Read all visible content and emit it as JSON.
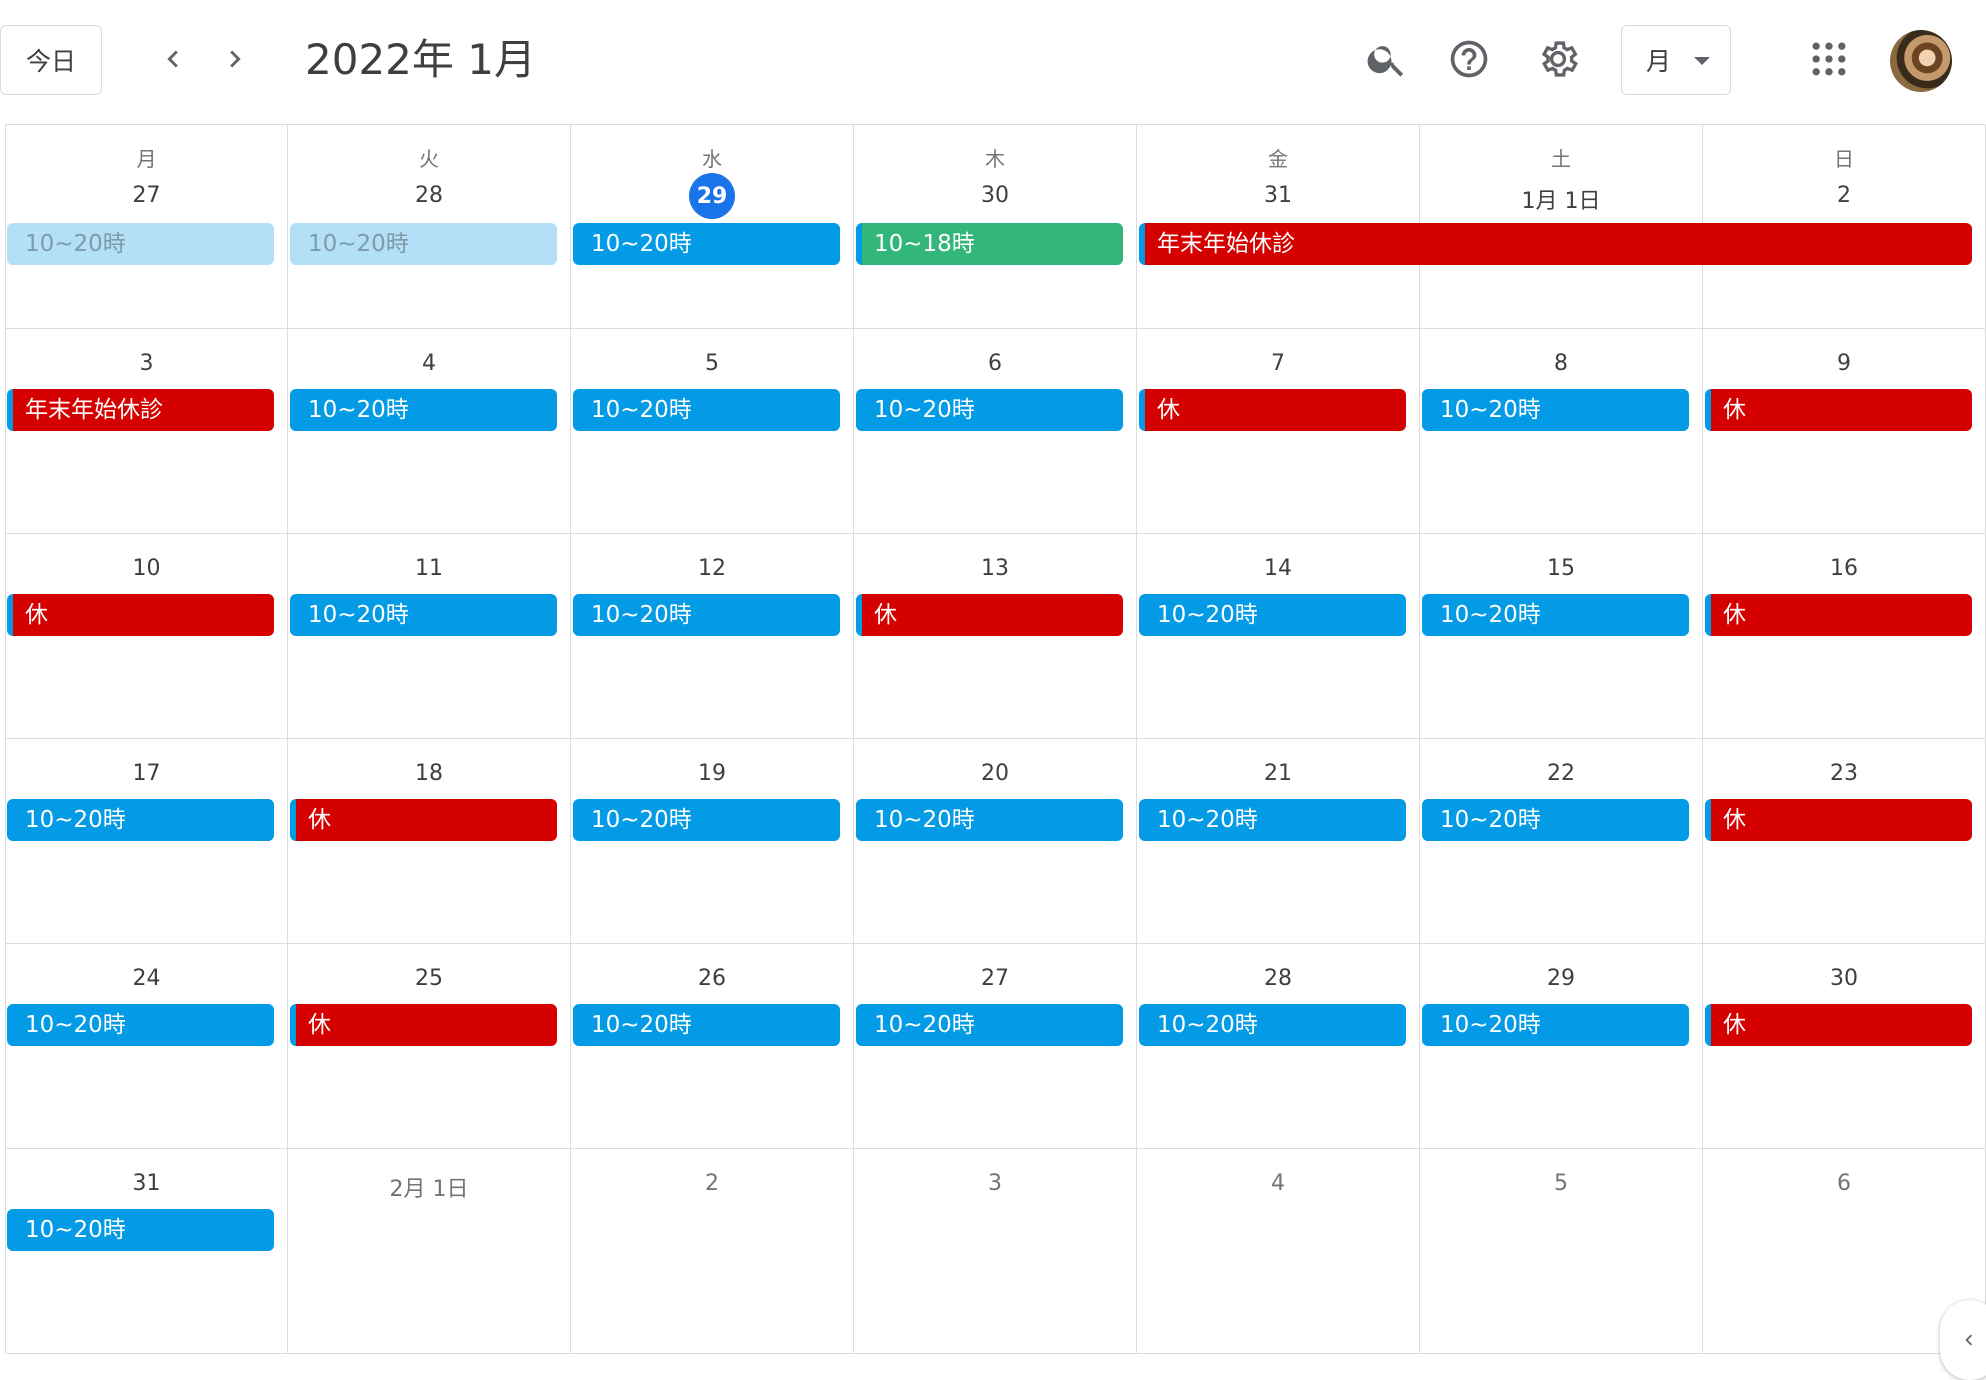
{
  "header": {
    "today_label": "今日",
    "title": "2022年 1月",
    "view_label": "月"
  },
  "weekdays": [
    "月",
    "火",
    "水",
    "木",
    "金",
    "土",
    "日"
  ],
  "weeks": [
    [
      {
        "label": "27",
        "muted": false,
        "today": false
      },
      {
        "label": "28",
        "muted": false,
        "today": false
      },
      {
        "label": "29",
        "muted": false,
        "today": true
      },
      {
        "label": "30",
        "muted": false,
        "today": false
      },
      {
        "label": "31",
        "muted": false,
        "today": false
      },
      {
        "label": "1月 1日",
        "muted": false,
        "today": false
      },
      {
        "label": "2",
        "muted": false,
        "today": false
      }
    ],
    [
      {
        "label": "3"
      },
      {
        "label": "4"
      },
      {
        "label": "5"
      },
      {
        "label": "6"
      },
      {
        "label": "7"
      },
      {
        "label": "8"
      },
      {
        "label": "9"
      }
    ],
    [
      {
        "label": "10"
      },
      {
        "label": "11"
      },
      {
        "label": "12"
      },
      {
        "label": "13"
      },
      {
        "label": "14"
      },
      {
        "label": "15"
      },
      {
        "label": "16"
      }
    ],
    [
      {
        "label": "17"
      },
      {
        "label": "18"
      },
      {
        "label": "19"
      },
      {
        "label": "20"
      },
      {
        "label": "21"
      },
      {
        "label": "22"
      },
      {
        "label": "23"
      }
    ],
    [
      {
        "label": "24"
      },
      {
        "label": "25"
      },
      {
        "label": "26"
      },
      {
        "label": "27"
      },
      {
        "label": "28"
      },
      {
        "label": "29"
      },
      {
        "label": "30"
      }
    ],
    [
      {
        "label": "31"
      },
      {
        "label": "2月 1日",
        "muted": true
      },
      {
        "label": "2",
        "muted": true
      },
      {
        "label": "3",
        "muted": true
      },
      {
        "label": "4",
        "muted": true
      },
      {
        "label": "5",
        "muted": true
      },
      {
        "label": "6",
        "muted": true
      }
    ]
  ],
  "events": [
    {
      "week": 0,
      "col": 0,
      "span": 1,
      "text": "10~20時",
      "style": "past"
    },
    {
      "week": 0,
      "col": 1,
      "span": 1,
      "text": "10~20時",
      "style": "past"
    },
    {
      "week": 0,
      "col": 2,
      "span": 1,
      "text": "10~20時",
      "style": "blue"
    },
    {
      "week": 0,
      "col": 3,
      "span": 1,
      "text": "10~18時",
      "style": "green"
    },
    {
      "week": 0,
      "col": 4,
      "span": 3,
      "text": "年末年始休診",
      "style": "red"
    },
    {
      "week": 1,
      "col": 0,
      "span": 1,
      "text": "年末年始休診",
      "style": "red"
    },
    {
      "week": 1,
      "col": 1,
      "span": 1,
      "text": "10~20時",
      "style": "blue"
    },
    {
      "week": 1,
      "col": 2,
      "span": 1,
      "text": "10~20時",
      "style": "blue"
    },
    {
      "week": 1,
      "col": 3,
      "span": 1,
      "text": "10~20時",
      "style": "blue"
    },
    {
      "week": 1,
      "col": 4,
      "span": 1,
      "text": "休",
      "style": "red"
    },
    {
      "week": 1,
      "col": 5,
      "span": 1,
      "text": "10~20時",
      "style": "blue"
    },
    {
      "week": 1,
      "col": 6,
      "span": 1,
      "text": "休",
      "style": "red"
    },
    {
      "week": 2,
      "col": 0,
      "span": 1,
      "text": "休",
      "style": "red"
    },
    {
      "week": 2,
      "col": 1,
      "span": 1,
      "text": "10~20時",
      "style": "blue"
    },
    {
      "week": 2,
      "col": 2,
      "span": 1,
      "text": "10~20時",
      "style": "blue"
    },
    {
      "week": 2,
      "col": 3,
      "span": 1,
      "text": "休",
      "style": "red"
    },
    {
      "week": 2,
      "col": 4,
      "span": 1,
      "text": "10~20時",
      "style": "blue"
    },
    {
      "week": 2,
      "col": 5,
      "span": 1,
      "text": "10~20時",
      "style": "blue"
    },
    {
      "week": 2,
      "col": 6,
      "span": 1,
      "text": "休",
      "style": "red"
    },
    {
      "week": 3,
      "col": 0,
      "span": 1,
      "text": "10~20時",
      "style": "blue"
    },
    {
      "week": 3,
      "col": 1,
      "span": 1,
      "text": "休",
      "style": "red"
    },
    {
      "week": 3,
      "col": 2,
      "span": 1,
      "text": "10~20時",
      "style": "blue"
    },
    {
      "week": 3,
      "col": 3,
      "span": 1,
      "text": "10~20時",
      "style": "blue"
    },
    {
      "week": 3,
      "col": 4,
      "span": 1,
      "text": "10~20時",
      "style": "blue"
    },
    {
      "week": 3,
      "col": 5,
      "span": 1,
      "text": "10~20時",
      "style": "blue"
    },
    {
      "week": 3,
      "col": 6,
      "span": 1,
      "text": "休",
      "style": "red"
    },
    {
      "week": 4,
      "col": 0,
      "span": 1,
      "text": "10~20時",
      "style": "blue"
    },
    {
      "week": 4,
      "col": 1,
      "span": 1,
      "text": "休",
      "style": "red"
    },
    {
      "week": 4,
      "col": 2,
      "span": 1,
      "text": "10~20時",
      "style": "blue"
    },
    {
      "week": 4,
      "col": 3,
      "span": 1,
      "text": "10~20時",
      "style": "blue"
    },
    {
      "week": 4,
      "col": 4,
      "span": 1,
      "text": "10~20時",
      "style": "blue"
    },
    {
      "week": 4,
      "col": 5,
      "span": 1,
      "text": "10~20時",
      "style": "blue"
    },
    {
      "week": 4,
      "col": 6,
      "span": 1,
      "text": "休",
      "style": "red"
    },
    {
      "week": 5,
      "col": 0,
      "span": 1,
      "text": "10~20時",
      "style": "blue"
    }
  ],
  "colors": {
    "event_blue": "#039be5",
    "event_red": "#d50000",
    "event_green": "#33b679",
    "today_circle": "#1a73e8"
  },
  "icons": [
    "prev-chevron-icon",
    "next-chevron-icon",
    "search-icon",
    "help-icon",
    "settings-gear-icon",
    "caret-down-icon",
    "apps-grid-icon",
    "side-panel-chevron-icon"
  ]
}
